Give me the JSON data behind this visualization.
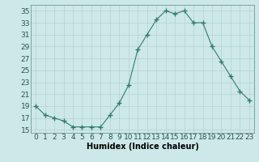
{
  "x": [
    0,
    1,
    2,
    3,
    4,
    5,
    6,
    7,
    8,
    9,
    10,
    11,
    12,
    13,
    14,
    15,
    16,
    17,
    18,
    19,
    20,
    21,
    22,
    23
  ],
  "y": [
    19,
    17.5,
    17,
    16.5,
    15.5,
    15.5,
    15.5,
    15.5,
    17.5,
    19.5,
    22.5,
    28.5,
    31,
    33.5,
    35,
    34.5,
    35,
    33,
    33,
    29,
    26.5,
    24,
    21.5,
    20
  ],
  "line_color": "#2e7d6e",
  "marker_color": "#2e7d6e",
  "bg_color": "#cde8e8",
  "grid_color": "#b8d0d0",
  "xlabel": "Humidex (Indice chaleur)",
  "ylabel": "",
  "xlim": [
    -0.5,
    23.5
  ],
  "ylim": [
    14.5,
    36
  ],
  "yticks": [
    15,
    17,
    19,
    21,
    23,
    25,
    27,
    29,
    31,
    33,
    35
  ],
  "xtick_labels": [
    "0",
    "1",
    "2",
    "3",
    "4",
    "5",
    "6",
    "7",
    "8",
    "9",
    "10",
    "11",
    "12",
    "13",
    "14",
    "15",
    "16",
    "17",
    "18",
    "19",
    "20",
    "21",
    "22",
    "23"
  ],
  "label_fontsize": 7,
  "tick_fontsize": 6.5
}
